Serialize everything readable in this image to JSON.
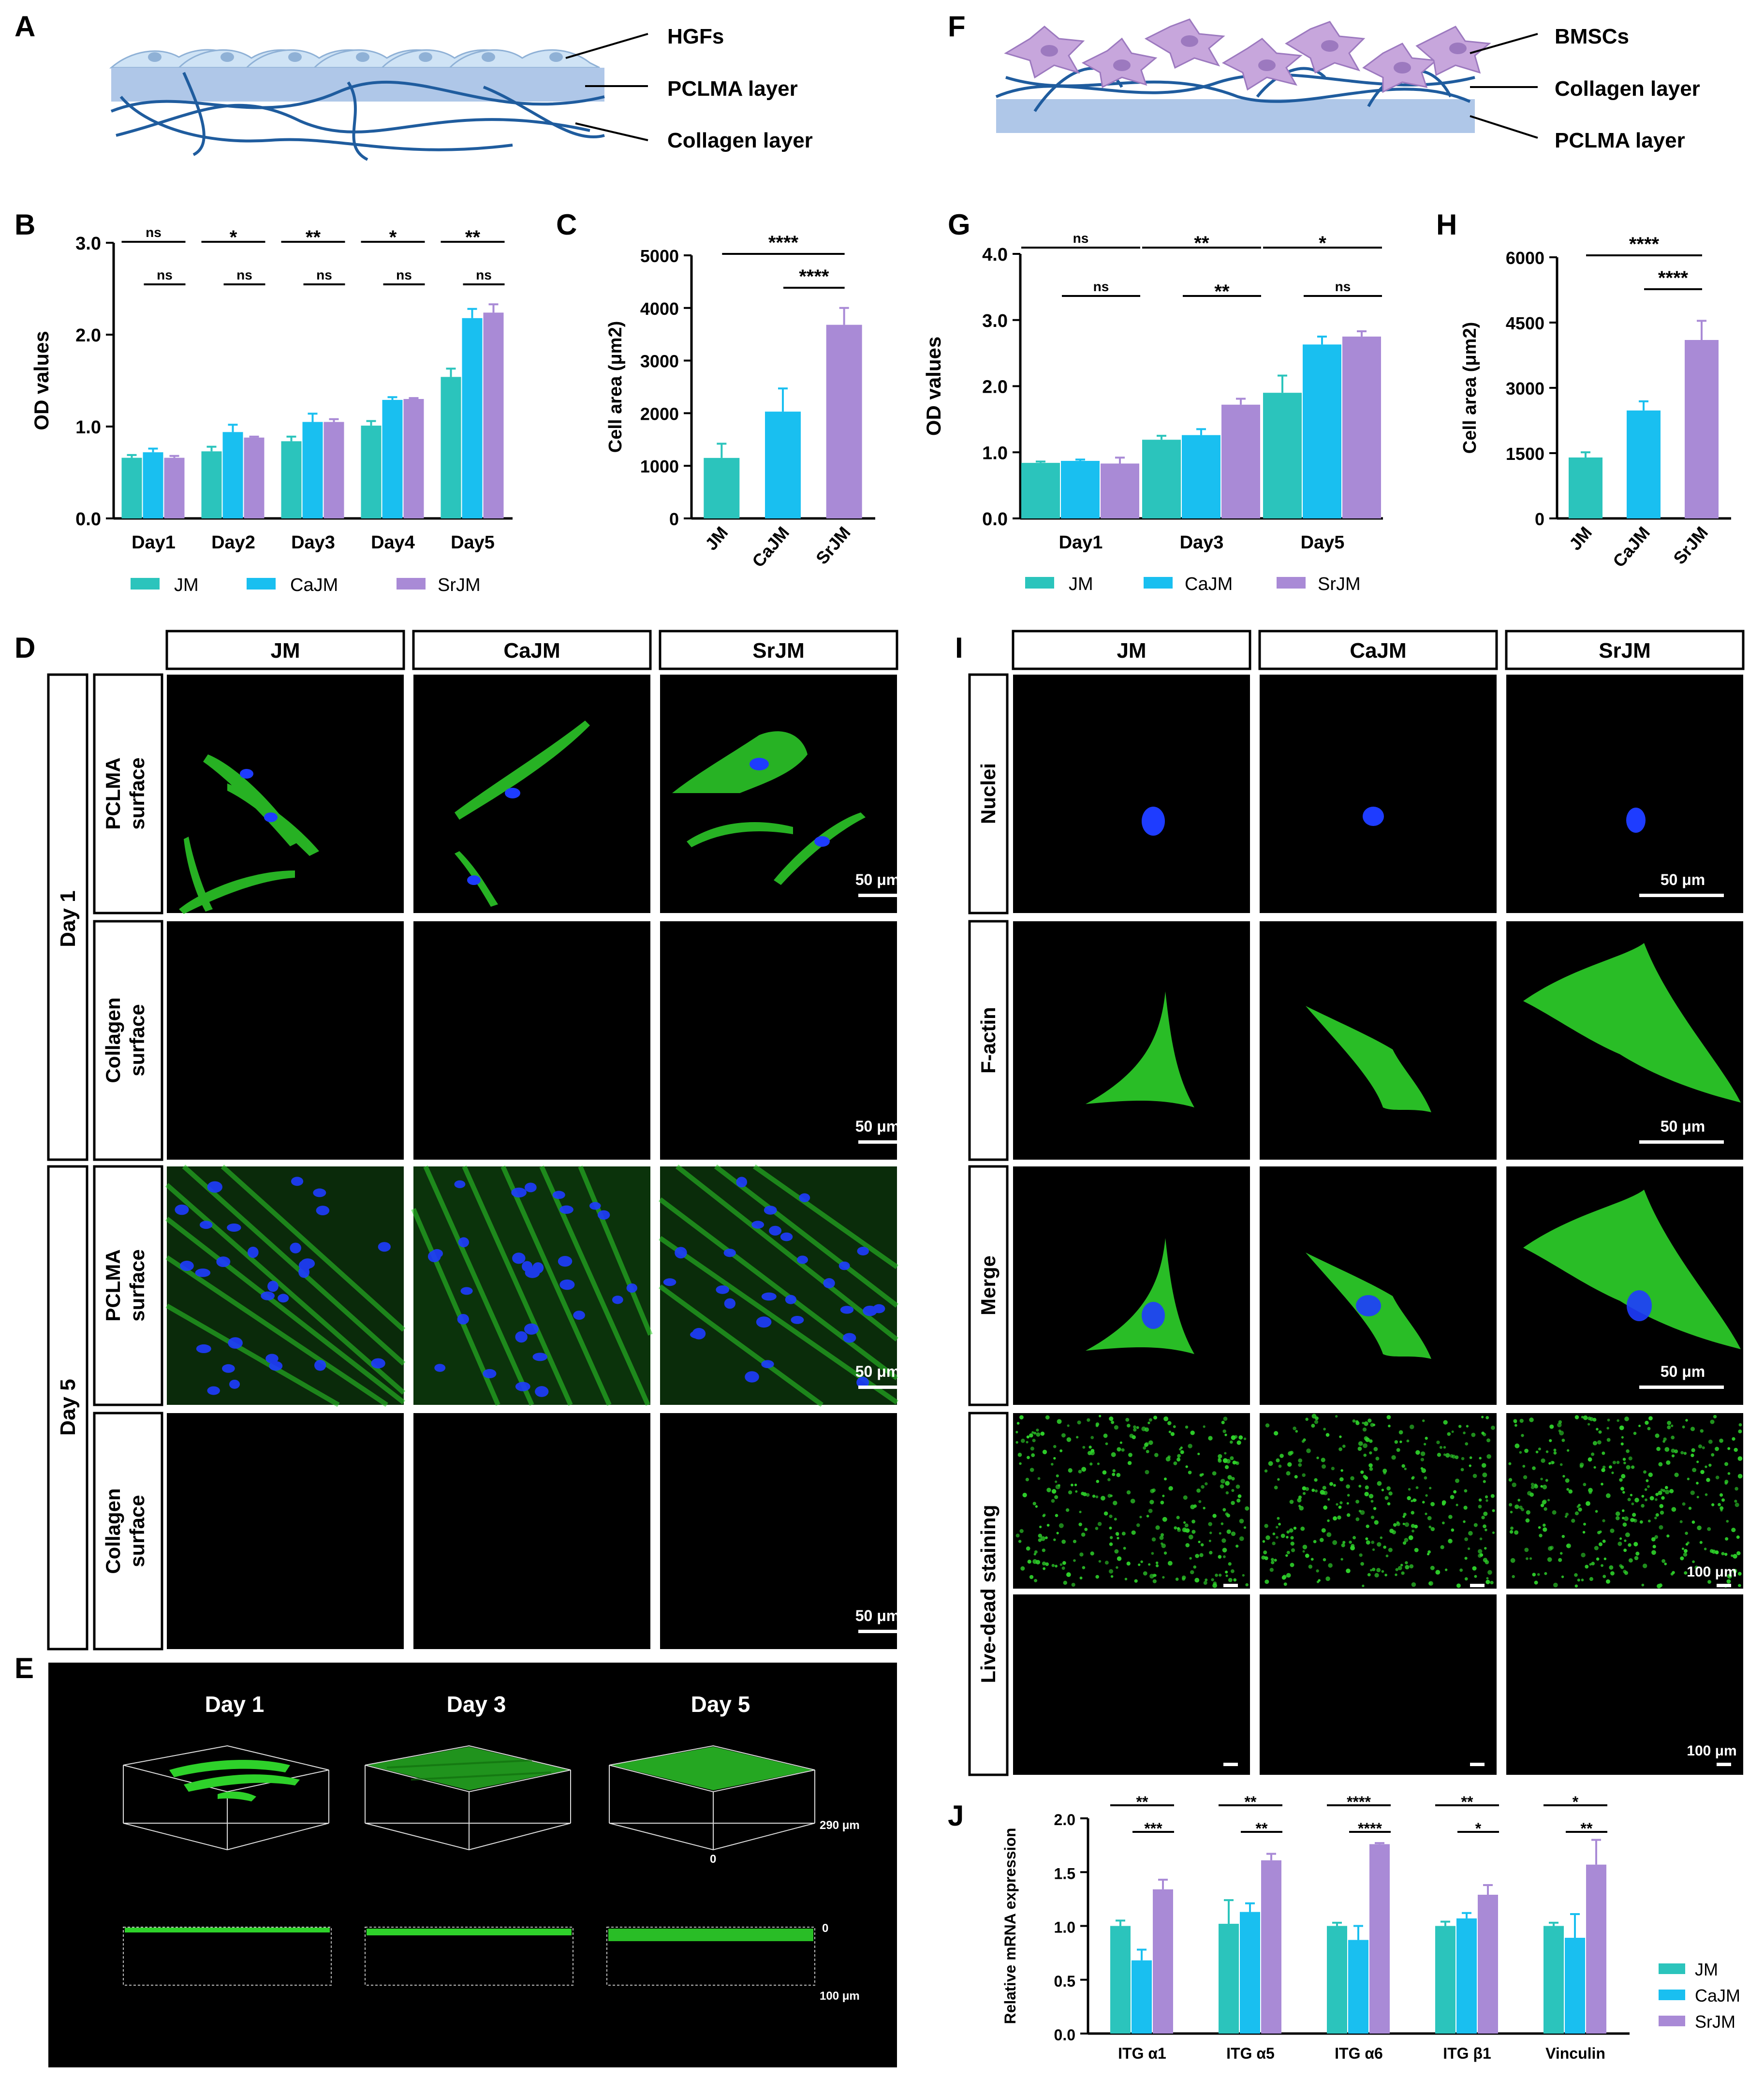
{
  "panel_labels": {
    "A": "A",
    "B": "B",
    "C": "C",
    "D": "D",
    "E": "E",
    "F": "F",
    "G": "G",
    "H": "H",
    "I": "I",
    "J": "J"
  },
  "colors": {
    "JM": "#2BC4BC",
    "CaJM": "#19BFF0",
    "SrJM": "#A98AD6",
    "membrane": "#AFC7E8",
    "fiber": "#1F5C9E",
    "cell_hgf": "#CFE3F5",
    "cell_bmsc": "#C7A6DC",
    "panel_bg": "#000000",
    "stain_green": "#2ED12A",
    "stain_blue": "#1E3CFF"
  },
  "schematic_a": {
    "labels": [
      "HGFs",
      "PCLMA layer",
      "Collagen layer"
    ]
  },
  "schematic_f": {
    "labels": [
      "BMSCs",
      "Collagen layer",
      "PCLMA layer"
    ]
  },
  "legend": [
    {
      "name": "JM",
      "color": "#2BC4BC"
    },
    {
      "name": "CaJM",
      "color": "#19BFF0"
    },
    {
      "name": "SrJM",
      "color": "#A98AD6"
    }
  ],
  "panel_d": {
    "columns": [
      "JM",
      "CaJM",
      "SrJM"
    ],
    "days": [
      "Day 1",
      "Day 5"
    ],
    "rows": [
      "PCLMA\nsurface",
      "Collagen\nsurface",
      "PCLMA\nsurface",
      "Collagen\nsurface"
    ],
    "scale": "50 μm"
  },
  "panel_e": {
    "titles": [
      "Day 1",
      "Day 3",
      "Day 5"
    ],
    "z_top": "290 μm",
    "z_zero": "0",
    "xs_zero": "0",
    "xs_bottom": "100 μm"
  },
  "panel_i": {
    "columns": [
      "JM",
      "CaJM",
      "SrJM"
    ],
    "rows": [
      "Nuclei",
      "F-actin",
      "Merge",
      "Live-dead staining"
    ],
    "scale_50": "50 μm",
    "scale_100": "100 μm"
  },
  "chart_data": [
    {
      "panel": "B",
      "type": "bar",
      "categories": [
        "Day1",
        "Day2",
        "Day3",
        "Day4",
        "Day5"
      ],
      "series": [
        {
          "name": "JM",
          "values": [
            0.66,
            0.73,
            0.84,
            1.01,
            1.54
          ],
          "errors": [
            0.03,
            0.05,
            0.05,
            0.05,
            0.09
          ]
        },
        {
          "name": "CaJM",
          "values": [
            0.72,
            0.94,
            1.05,
            1.29,
            2.18
          ],
          "errors": [
            0.04,
            0.08,
            0.09,
            0.03,
            0.1
          ]
        },
        {
          "name": "SrJM",
          "values": [
            0.66,
            0.88,
            1.05,
            1.3,
            2.24
          ],
          "errors": [
            0.02,
            0.01,
            0.03,
            0.01,
            0.09
          ]
        }
      ],
      "ylabel": "OD values",
      "ylim": [
        0,
        3.0
      ],
      "yticks": [
        "0.0",
        "1.0",
        "2.0",
        "3.0"
      ],
      "grid": false,
      "sig_top": [
        "ns",
        "*",
        "**",
        "*",
        "**"
      ],
      "sig_bottom": [
        "ns",
        "ns",
        "ns",
        "ns",
        "ns"
      ]
    },
    {
      "panel": "C",
      "type": "bar",
      "categories": [
        "JM",
        "CaJM",
        "SrJM"
      ],
      "values": [
        1150,
        2030,
        3680
      ],
      "errors": [
        270,
        440,
        320
      ],
      "ylabel": "Cell area (μm2)",
      "ylim": [
        0,
        5000
      ],
      "yticks": [
        "0",
        "1000",
        "2000",
        "3000",
        "4000",
        "5000"
      ],
      "sig": [
        {
          "from": 0,
          "to": 2,
          "label": "****"
        },
        {
          "from": 1,
          "to": 2,
          "label": "****"
        }
      ]
    },
    {
      "panel": "G",
      "type": "bar",
      "categories": [
        "Day1",
        "Day3",
        "Day5"
      ],
      "series": [
        {
          "name": "JM",
          "values": [
            0.84,
            1.19,
            1.9
          ],
          "errors": [
            0.02,
            0.06,
            0.26
          ]
        },
        {
          "name": "CaJM",
          "values": [
            0.87,
            1.26,
            2.63
          ],
          "errors": [
            0.02,
            0.09,
            0.12
          ]
        },
        {
          "name": "SrJM",
          "values": [
            0.83,
            1.72,
            2.75
          ],
          "errors": [
            0.09,
            0.09,
            0.08
          ]
        }
      ],
      "ylabel": "OD values",
      "ylim": [
        0,
        4.0
      ],
      "yticks": [
        "0.0",
        "1.0",
        "2.0",
        "3.0",
        "4.0"
      ],
      "grid": false,
      "sig_top": [
        "ns",
        "**",
        "*"
      ],
      "sig_bottom": [
        "ns",
        "**",
        "ns"
      ]
    },
    {
      "panel": "H",
      "type": "bar",
      "categories": [
        "JM",
        "CaJM",
        "SrJM"
      ],
      "values": [
        1400,
        2480,
        4100
      ],
      "errors": [
        120,
        210,
        440
      ],
      "ylabel": "Cell area (μm2)",
      "ylim": [
        0,
        6000
      ],
      "yticks": [
        "0",
        "1500",
        "3000",
        "4500",
        "6000"
      ],
      "sig": [
        {
          "from": 0,
          "to": 2,
          "label": "****"
        },
        {
          "from": 1,
          "to": 2,
          "label": "****"
        }
      ]
    },
    {
      "panel": "J",
      "type": "bar",
      "categories": [
        "ITG α1",
        "ITG α5",
        "ITG α6",
        "ITG β1",
        "Vinculin"
      ],
      "series": [
        {
          "name": "JM",
          "values": [
            1.0,
            1.02,
            1.0,
            1.0,
            1.0
          ],
          "errors": [
            0.05,
            0.22,
            0.03,
            0.04,
            0.03
          ]
        },
        {
          "name": "CaJM",
          "values": [
            0.68,
            1.13,
            0.87,
            1.07,
            0.89
          ],
          "errors": [
            0.1,
            0.08,
            0.13,
            0.05,
            0.22
          ]
        },
        {
          "name": "SrJM",
          "values": [
            1.34,
            1.61,
            1.76,
            1.29,
            1.57
          ],
          "errors": [
            0.09,
            0.06,
            0.01,
            0.09,
            0.23
          ]
        }
      ],
      "ylabel": "Relative mRNA expression",
      "ylim": [
        0,
        2.0
      ],
      "yticks": [
        "0.0",
        "0.5",
        "1.0",
        "1.5",
        "2.0"
      ],
      "sig_top": [
        "**",
        "**",
        "****",
        "**",
        "*"
      ],
      "sig_bottom": [
        "***",
        "**",
        "****",
        "*",
        "**"
      ]
    }
  ]
}
